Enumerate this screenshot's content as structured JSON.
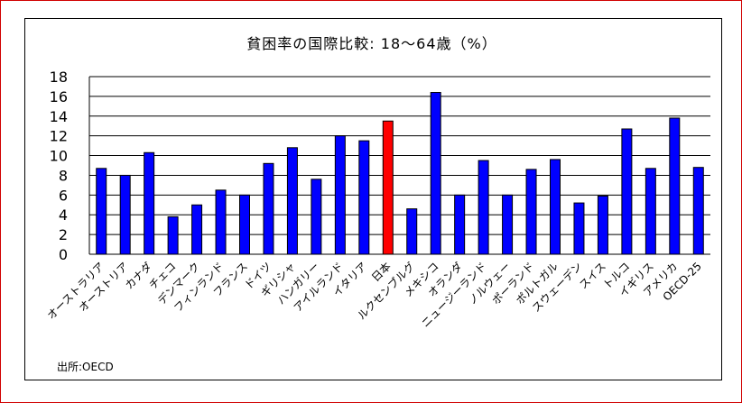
{
  "chart_data": {
    "type": "bar",
    "title": "貧困率の国際比較:  18〜64歳（%）",
    "categories": [
      "オーストラリア",
      "オーストリア",
      "カナダ",
      "チェコ",
      "デンマーク",
      "フィンランド",
      "フランス",
      "ドイツ",
      "ギリシャ",
      "ハンガリー",
      "アイルランド",
      "イタリア",
      "日本",
      "ルクセンブルグ",
      "メキシコ",
      "オランダ",
      "ニュージーランド",
      "ノルウェー",
      "ポーランド",
      "ポルトガル",
      "スウェーデン",
      "スイス",
      "トルコ",
      "イギリス",
      "アメリカ",
      "OECD-25"
    ],
    "values": [
      8.7,
      8.0,
      10.3,
      3.8,
      5.0,
      6.5,
      6.0,
      9.2,
      10.8,
      7.6,
      12.0,
      11.5,
      13.5,
      4.6,
      16.4,
      6.0,
      9.5,
      6.0,
      8.6,
      9.6,
      5.2,
      5.9,
      12.7,
      8.7,
      13.8,
      8.8
    ],
    "highlight_index": 12,
    "colors": {
      "bar": "#0000ff",
      "highlight": "#ff0000",
      "bar_edge": "#000000",
      "frame": "#d00000"
    },
    "ylim": [
      0,
      18
    ],
    "yticks": [
      0,
      2,
      4,
      6,
      8,
      10,
      12,
      14,
      16,
      18
    ],
    "grid": true,
    "legend": "none",
    "xlabel": "",
    "ylabel": ""
  },
  "source": "出所:OECD"
}
